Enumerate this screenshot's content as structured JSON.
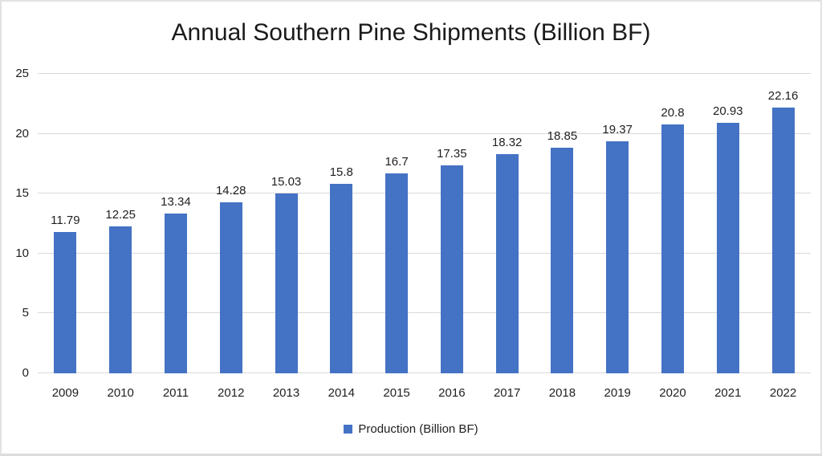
{
  "chart_data": {
    "type": "bar",
    "title": "Annual Southern Pine Shipments (Billion BF)",
    "categories": [
      "2009",
      "2010",
      "2011",
      "2012",
      "2013",
      "2014",
      "2015",
      "2016",
      "2017",
      "2018",
      "2019",
      "2020",
      "2021",
      "2022"
    ],
    "values": [
      11.79,
      12.25,
      13.34,
      14.28,
      15.03,
      15.8,
      16.7,
      17.35,
      18.32,
      18.85,
      19.37,
      20.8,
      20.93,
      22.16
    ],
    "value_labels": [
      "11.79",
      "12.25",
      "13.34",
      "14.28",
      "15.03",
      "15.8",
      "16.7",
      "17.35",
      "18.32",
      "18.85",
      "19.37",
      "20.8",
      "20.93",
      "22.16"
    ],
    "xlabel": "",
    "ylabel": "",
    "ylim": [
      0,
      25
    ],
    "yticks": [
      0,
      5,
      10,
      15,
      20,
      25
    ],
    "grid": true,
    "legend": {
      "position": "bottom",
      "entries": [
        "Production (Billion BF)"
      ]
    },
    "colors": {
      "bar": "#4472C4",
      "gridline": "#D9D9D9",
      "axis_line": "#D9D9D9",
      "text": "#1f1f1f"
    }
  }
}
